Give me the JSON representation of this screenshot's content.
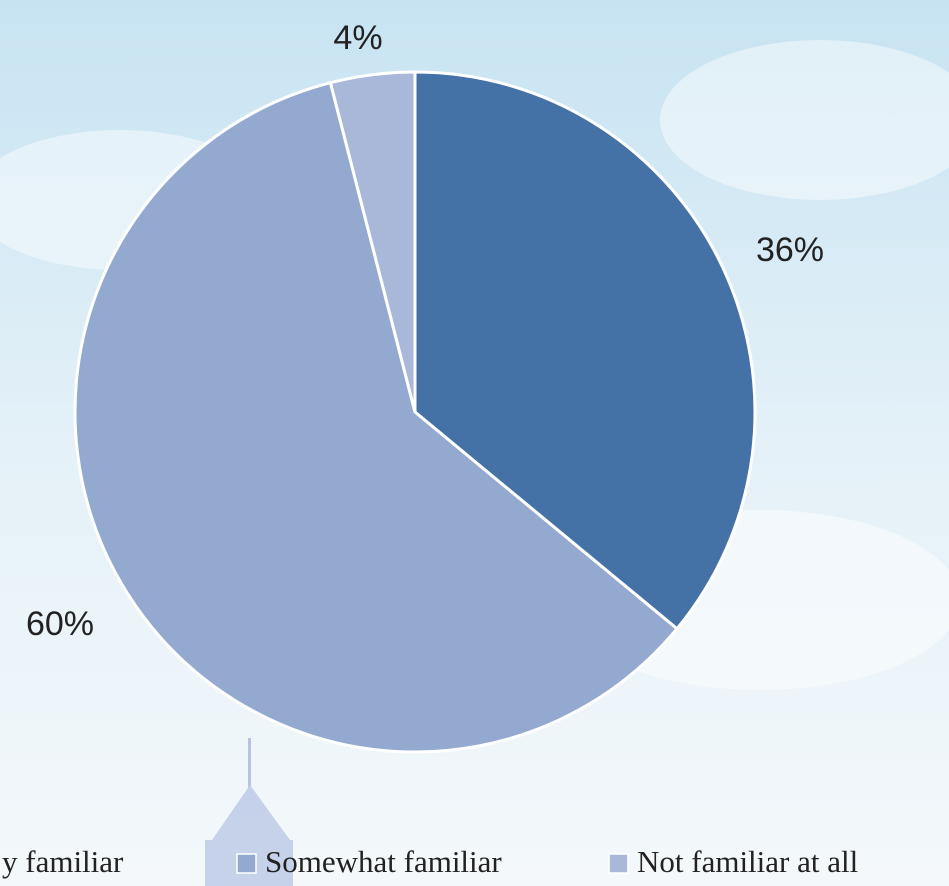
{
  "chart_data": {
    "type": "pie",
    "categories": [
      "y familiar",
      "Somewhat familiar",
      "Not familiar at all"
    ],
    "values": [
      36,
      60,
      4
    ],
    "value_labels": [
      "36%",
      "60%",
      "4%"
    ],
    "colors": [
      "#4471a6",
      "#94a9d0",
      "#a9b8d8"
    ],
    "legend": "bottom"
  }
}
